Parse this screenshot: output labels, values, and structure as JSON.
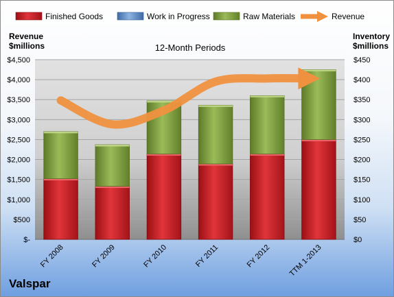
{
  "chart_data": {
    "type": "bar",
    "stacked": true,
    "subtitle": "12-Month Periods",
    "categories": [
      "FY 2008",
      "FY 2009",
      "FY 2010",
      "FY 2011",
      "FY 2012",
      "TTM 1-2013"
    ],
    "series": [
      {
        "name": "Finished Goods",
        "color": "#c0181d",
        "axis": "right",
        "values": [
          152,
          133,
          214,
          189,
          214,
          250
        ]
      },
      {
        "name": "Work in Progress",
        "color": "#4f81bd",
        "axis": "right",
        "values": [
          0,
          0,
          0,
          0,
          0,
          0
        ]
      },
      {
        "name": "Raw Materials",
        "color": "#7a9a3a",
        "axis": "right",
        "values": [
          118,
          104,
          133,
          147,
          146,
          175
        ]
      },
      {
        "name": "Revenue",
        "color": "#f0913f",
        "type": "line",
        "axis": "left",
        "values": [
          3480,
          2880,
          3230,
          3950,
          4030,
          4030
        ]
      }
    ],
    "left_axis": {
      "label_line1": "Revenue",
      "label_line2": "$millions",
      "ylim": [
        0,
        4500
      ],
      "tick_labels": [
        "$-",
        "$500",
        "$1,000",
        "$1,500",
        "$2,000",
        "$2,500",
        "$3,000",
        "$3,500",
        "$4,000",
        "$4,500"
      ]
    },
    "right_axis": {
      "label_line1": "Inventory",
      "label_line2": "$millions",
      "ylim": [
        0,
        450
      ],
      "tick_labels": [
        "$0",
        "$50",
        "$100",
        "$150",
        "$200",
        "$250",
        "$300",
        "$350",
        "$400",
        "$450"
      ]
    },
    "grid": true,
    "legend": "top"
  },
  "company": "Valspar"
}
